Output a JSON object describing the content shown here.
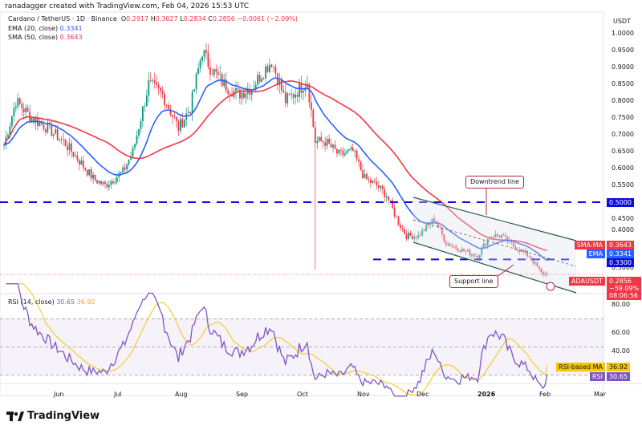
{
  "header": {
    "credit": "ranadagger created with TradingView.com, Feb 04, 2026 15:53 UTC",
    "symbol": "Cardano / TetherUS · 1D · Binance",
    "o_label": "O",
    "o": "0.2917",
    "h_label": "H",
    "h": "0.3027",
    "l_label": "L",
    "l": "0.2834",
    "c_label": "C",
    "c": "0.2856",
    "change": "−0.0061 (−2.09%)",
    "ema": "EMA (20, close)",
    "ema_val": "0.3341",
    "sma": "SMA (50, close)",
    "sma_val": "0.3643",
    "rsi": "RSI (14, close)",
    "rsi_val": "30.65",
    "rsi_ma_val": "36.92",
    "currency": "USDT"
  },
  "labels": {
    "sma_tag": "SMA:MA",
    "sma_val": "0.3643",
    "ema_tag": "EMA",
    "ema_val": "0.3341",
    "level_330": "0.3300",
    "level_500": "0.5000",
    "ticker_tag": "ADAUSDT",
    "price": "0.2856",
    "pct": "−59.09%",
    "countdown": "08:06:56",
    "rsi_ma_tag": "RSI-based MA",
    "rsi_ma": "36.92",
    "rsi_tag": "RSI",
    "rsi": "30.65",
    "downtrend": "Downtrend line",
    "support": "Support line",
    "logo": "TradingView"
  },
  "colors": {
    "up": "#089981",
    "down": "#f23645",
    "ema": "#2962ff",
    "sma": "#f23645",
    "level": "#0d0ddb",
    "rsi": "#7e57c2",
    "rsi_ma": "#f7c600"
  },
  "chart_data": {
    "type": "candlestick",
    "price_axis": {
      "ticks": [
        "1.0000",
        "0.9500",
        "0.9000",
        "0.8500",
        "0.8000",
        "0.7500",
        "0.7000",
        "0.6500",
        "0.6000",
        "0.5500",
        "0.4500",
        "0.4000",
        "0.3000"
      ],
      "ylim": [
        0.25,
        1.03
      ]
    },
    "rsi_axis": {
      "ticks": [
        "80.00",
        "60.00",
        "40.00"
      ],
      "band": [
        30,
        70
      ]
    },
    "time_axis": {
      "ticks": [
        "Jun",
        "Jul",
        "Aug",
        "Sep",
        "Oct",
        "Nov",
        "Dec",
        "2026",
        "Feb",
        "Mar"
      ]
    },
    "close_keypoints": [
      [
        "2025-05-06",
        0.67
      ],
      [
        "2025-05-12",
        0.8
      ],
      [
        "2025-05-20",
        0.75
      ],
      [
        "2025-05-28",
        0.72
      ],
      [
        "2025-06-05",
        0.68
      ],
      [
        "2025-06-12",
        0.63
      ],
      [
        "2025-06-20",
        0.57
      ],
      [
        "2025-06-26",
        0.55
      ],
      [
        "2025-07-05",
        0.59
      ],
      [
        "2025-07-10",
        0.65
      ],
      [
        "2025-07-18",
        0.85
      ],
      [
        "2025-07-25",
        0.82
      ],
      [
        "2025-08-02",
        0.72
      ],
      [
        "2025-08-08",
        0.78
      ],
      [
        "2025-08-14",
        0.95
      ],
      [
        "2025-08-18",
        0.9
      ],
      [
        "2025-08-25",
        0.85
      ],
      [
        "2025-09-01",
        0.82
      ],
      [
        "2025-09-08",
        0.84
      ],
      [
        "2025-09-14",
        0.89
      ],
      [
        "2025-09-18",
        0.92
      ],
      [
        "2025-09-25",
        0.8
      ],
      [
        "2025-10-01",
        0.83
      ],
      [
        "2025-10-06",
        0.86
      ],
      [
        "2025-10-10",
        0.68
      ],
      [
        "2025-10-15",
        0.68
      ],
      [
        "2025-10-22",
        0.64
      ],
      [
        "2025-10-29",
        0.65
      ],
      [
        "2025-11-04",
        0.57
      ],
      [
        "2025-11-10",
        0.55
      ],
      [
        "2025-11-15",
        0.52
      ],
      [
        "2025-11-21",
        0.44
      ],
      [
        "2025-11-25",
        0.4
      ],
      [
        "2025-12-01",
        0.4
      ],
      [
        "2025-12-09",
        0.45
      ],
      [
        "2025-12-15",
        0.38
      ],
      [
        "2025-12-22",
        0.36
      ],
      [
        "2025-12-31",
        0.34
      ],
      [
        "2026-01-06",
        0.4
      ],
      [
        "2026-01-12",
        0.4
      ],
      [
        "2026-01-18",
        0.37
      ],
      [
        "2026-01-26",
        0.34
      ],
      [
        "2026-02-01",
        0.29
      ],
      [
        "2026-02-04",
        0.2856
      ]
    ],
    "horizontal_levels": [
      0.5,
      0.33
    ],
    "series": [
      {
        "name": "EMA (20, close)",
        "last": 0.3341
      },
      {
        "name": "SMA (50, close)",
        "last": 0.3643
      },
      {
        "name": "RSI (14, close)",
        "last": 30.65
      },
      {
        "name": "RSI-based MA",
        "last": 36.92
      }
    ]
  }
}
